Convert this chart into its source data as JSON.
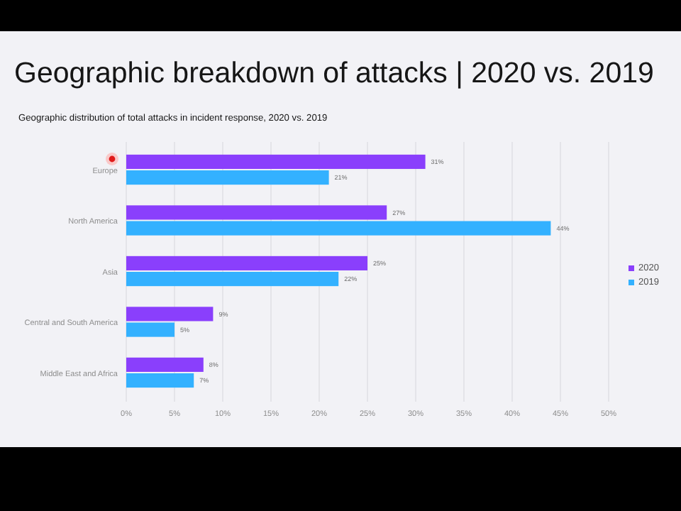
{
  "chart_data": {
    "type": "bar",
    "orientation": "horizontal",
    "title": "Geographic breakdown of attacks | 2020 vs. 2019",
    "subtitle": "Geographic distribution of total attacks in incident response, 2020 vs. 2019",
    "categories": [
      "Europe",
      "North America",
      "Asia",
      "Central and South America",
      "Middle East and Africa"
    ],
    "series": [
      {
        "name": "2020",
        "color": "#8a3ffc",
        "values": [
          31,
          27,
          25,
          9,
          8
        ],
        "value_labels": [
          "31%",
          "27%",
          "25%",
          "9%",
          "8%"
        ]
      },
      {
        "name": "2019",
        "color": "#33b1ff",
        "values": [
          21,
          44,
          22,
          5,
          7
        ],
        "value_labels": [
          "21%",
          "44%",
          "22%",
          "5%",
          "7%"
        ]
      }
    ],
    "xlim": [
      0,
      50
    ],
    "xticks": [
      {
        "value": 0,
        "label": "0%"
      },
      {
        "value": 5,
        "label": "5%"
      },
      {
        "value": 10,
        "label": "10%"
      },
      {
        "value": 15,
        "label": "15%"
      },
      {
        "value": 20,
        "label": "20%"
      },
      {
        "value": 25,
        "label": "25%"
      },
      {
        "value": 30,
        "label": "30%"
      },
      {
        "value": 35,
        "label": "35%"
      },
      {
        "value": 40,
        "label": "40%"
      },
      {
        "value": 45,
        "label": "45%"
      },
      {
        "value": 50,
        "label": "50%"
      }
    ],
    "grid": "x",
    "legend": "right"
  }
}
